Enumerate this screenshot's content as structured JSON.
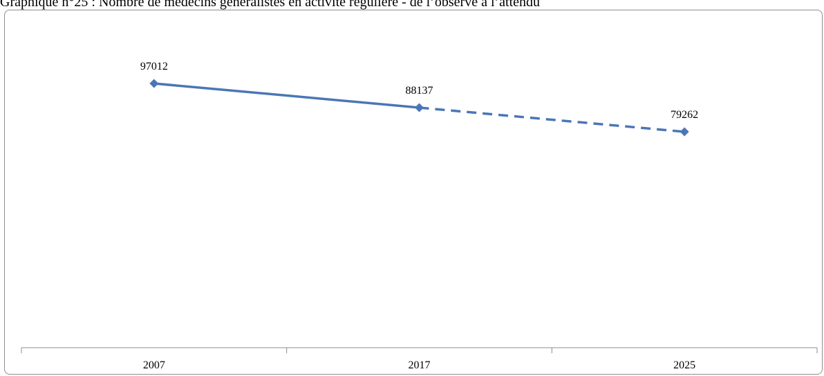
{
  "title": "Graphique n°25 : Nombre de médecins généralistes en activité régulière - de l’observé à l’attendu",
  "colors": {
    "series": "#4a76b6",
    "axis": "#8c8c8c"
  },
  "chart_data": {
    "type": "line",
    "categories": [
      "2007",
      "2017",
      "2025"
    ],
    "series": [
      {
        "name": "",
        "values": [
          97012,
          88137,
          79262
        ],
        "style": [
          "solid",
          "solid",
          "dashed"
        ]
      }
    ],
    "data_labels": [
      "97012",
      "88137",
      "79262"
    ],
    "ylim": [
      0,
      100000
    ],
    "y_axis_visible": false,
    "grid": false,
    "legend": "none",
    "xlabel": "",
    "ylabel": ""
  }
}
